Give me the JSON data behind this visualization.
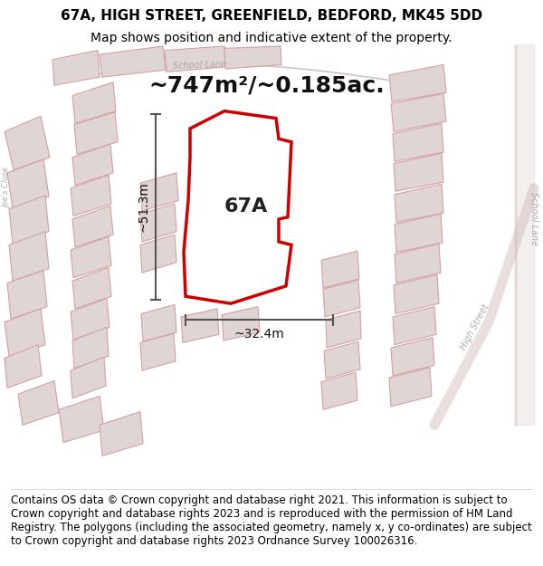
{
  "title_line1": "67A, HIGH STREET, GREENFIELD, BEDFORD, MK45 5DD",
  "title_line2": "Map shows position and indicative extent of the property.",
  "footer_text": "Contains OS data © Crown copyright and database right 2021. This information is subject to Crown copyright and database rights 2023 and is reproduced with the permission of HM Land Registry. The polygons (including the associated geometry, namely x, y co-ordinates) are subject to Crown copyright and database rights 2023 Ordnance Survey 100026316.",
  "area_label": "~747m²/~0.185ac.",
  "property_label": "67A",
  "dim_width_label": "~32.4m",
  "dim_height_label": "~51.3m",
  "map_bg": "#f2eded",
  "title_bg": "#ffffff",
  "footer_bg": "#ffffff",
  "property_polygon_color": "#cc0000",
  "property_polygon_fill": "#ffffff",
  "building_edge": "#d4a0a0",
  "building_fill": "#e0d5d5",
  "dim_line_color": "#555555",
  "title_fontsize": 11,
  "subtitle_fontsize": 10,
  "area_fontsize": 18,
  "property_label_fontsize": 16,
  "dim_label_fontsize": 10,
  "footer_fontsize": 8.5
}
